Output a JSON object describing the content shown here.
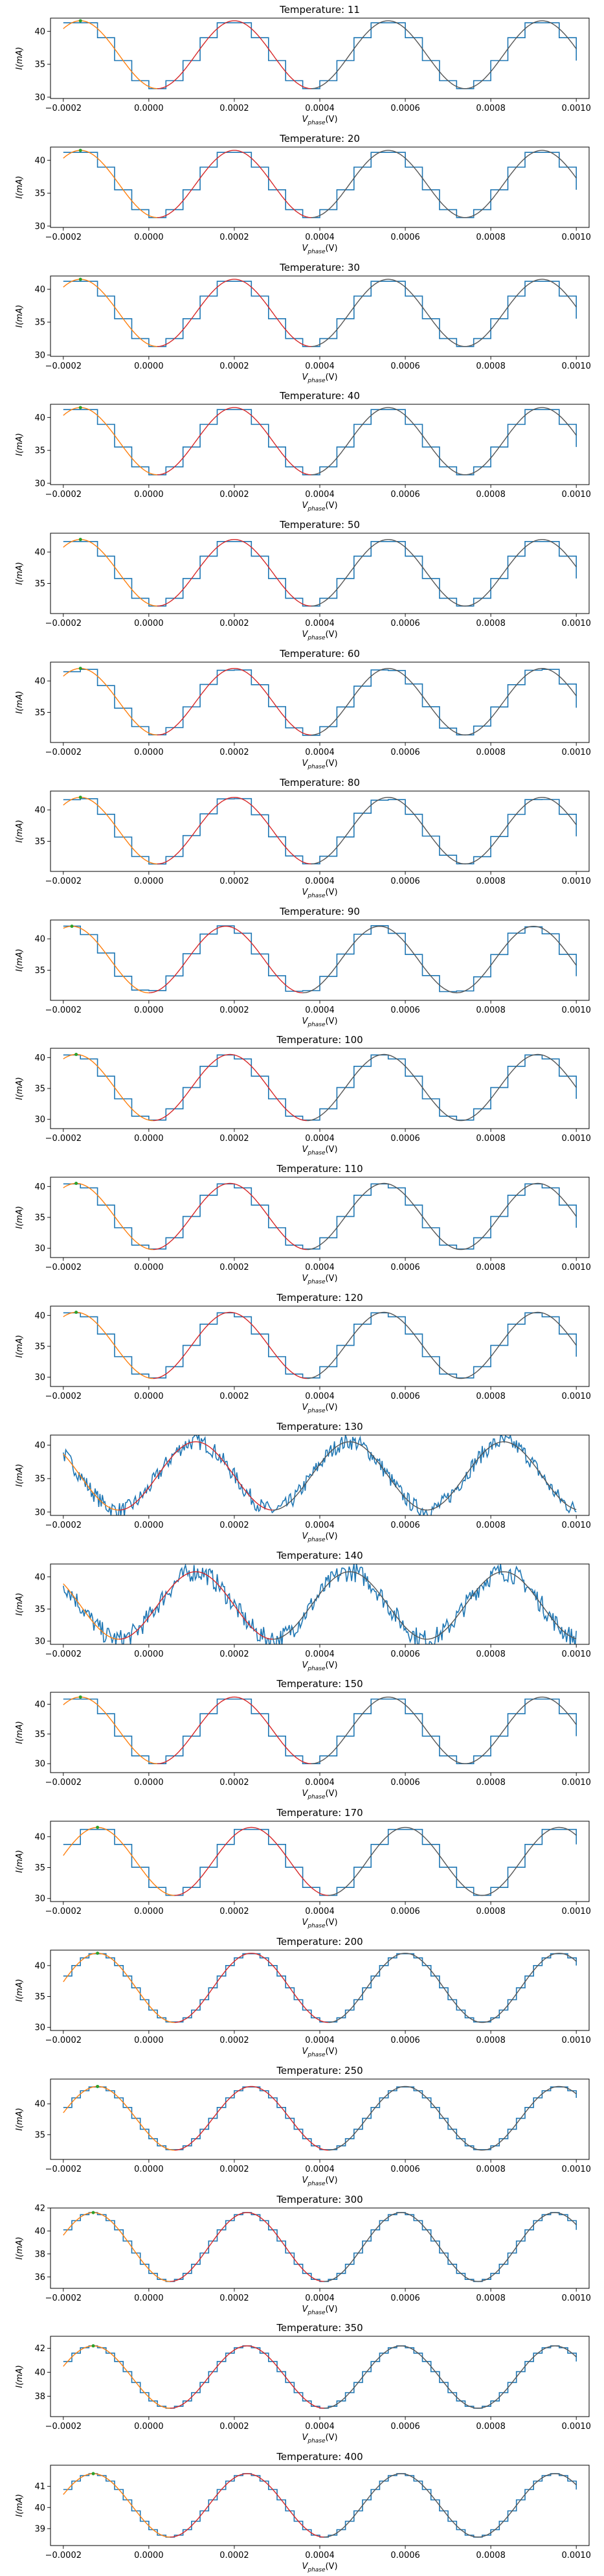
{
  "colors": {
    "measured": "#1f77b4",
    "fit_left": "#ff7f0e",
    "fit_middle": "#d62728",
    "fit_right": "#555555",
    "marker": "#2ca02c"
  },
  "axis": {
    "x_label_main": "V",
    "x_label_sub": "phase",
    "x_label_unit": "(V)",
    "y_label": "I(mA)",
    "x_ticks": [
      "−0.0002",
      "0.0000",
      "0.0002",
      "0.0004",
      "0.0006",
      "0.0008",
      "0.0010"
    ],
    "x_tick_values": [
      -0.0002,
      0.0,
      0.0002,
      0.0004,
      0.0006,
      0.0008,
      0.001
    ],
    "xlim": [
      -0.00023,
      0.00103
    ]
  },
  "chart_data": [
    {
      "type": "line",
      "title": "Temperature: 11",
      "ylim": [
        29.8,
        42
      ],
      "yticks": [
        30,
        35,
        40
      ],
      "offset": 31.3,
      "amplitude": 10.3,
      "phase_peak": 0.0002,
      "period": 0.00036,
      "step": 4e-05,
      "noise": 0
    },
    {
      "type": "line",
      "title": "Temperature: 20",
      "ylim": [
        29.8,
        42
      ],
      "yticks": [
        30,
        35,
        40
      ],
      "offset": 31.3,
      "amplitude": 10.2,
      "phase_peak": 0.0002,
      "period": 0.00036,
      "step": 4e-05,
      "noise": 0
    },
    {
      "type": "line",
      "title": "Temperature: 30",
      "ylim": [
        29.8,
        42
      ],
      "yticks": [
        30,
        35,
        40
      ],
      "offset": 31.3,
      "amplitude": 10.2,
      "phase_peak": 0.0002,
      "period": 0.00036,
      "step": 4e-05,
      "noise": 0
    },
    {
      "type": "line",
      "title": "Temperature: 40",
      "ylim": [
        29.8,
        42
      ],
      "yticks": [
        30,
        35,
        40
      ],
      "offset": 31.3,
      "amplitude": 10.2,
      "phase_peak": 0.0002,
      "period": 0.00036,
      "step": 4e-05,
      "noise": 0
    },
    {
      "type": "line",
      "title": "Temperature: 50",
      "ylim": [
        30.2,
        43
      ],
      "yticks": [
        35,
        40
      ],
      "offset": 31.4,
      "amplitude": 10.6,
      "phase_peak": 0.0002,
      "period": 0.00036,
      "step": 4e-05,
      "noise": 0
    },
    {
      "type": "line",
      "title": "Temperature: 60",
      "ylim": [
        30.2,
        43
      ],
      "yticks": [
        35,
        40
      ],
      "offset": 31.4,
      "amplitude": 10.6,
      "phase_peak": 0.0002,
      "period": 0.00036,
      "step": 4e-05,
      "noise": 0.4
    },
    {
      "type": "line",
      "title": "Temperature: 80",
      "ylim": [
        30.2,
        43
      ],
      "yticks": [
        35,
        40
      ],
      "offset": 31.4,
      "amplitude": 10.6,
      "phase_peak": 0.0002,
      "period": 0.00036,
      "step": 4e-05,
      "noise": 0.3
    },
    {
      "type": "line",
      "title": "Temperature: 90",
      "ylim": [
        30.2,
        43
      ],
      "yticks": [
        35,
        40
      ],
      "offset": 31.4,
      "amplitude": 10.6,
      "phase_peak": 0.00018,
      "period": 0.00036,
      "step": 4e-05,
      "noise": 0.3
    },
    {
      "type": "line",
      "title": "Temperature: 100",
      "ylim": [
        28.5,
        41.5
      ],
      "yticks": [
        30,
        35,
        40
      ],
      "offset": 29.8,
      "amplitude": 10.7,
      "phase_peak": 0.00019,
      "period": 0.00036,
      "step": 4e-05,
      "noise": 0
    },
    {
      "type": "line",
      "title": "Temperature: 110",
      "ylim": [
        28.5,
        41.5
      ],
      "yticks": [
        30,
        35,
        40
      ],
      "offset": 29.8,
      "amplitude": 10.7,
      "phase_peak": 0.00019,
      "period": 0.00036,
      "step": 4e-05,
      "noise": 0
    },
    {
      "type": "line",
      "title": "Temperature: 120",
      "ylim": [
        28.5,
        41.5
      ],
      "yticks": [
        30,
        35,
        40
      ],
      "offset": 29.8,
      "amplitude": 10.7,
      "phase_peak": 0.00019,
      "period": 0.00036,
      "step": 4e-05,
      "noise": 0
    },
    {
      "type": "line",
      "title": "Temperature: 130",
      "ylim": [
        29.5,
        41.5
      ],
      "yticks": [
        30,
        35,
        40
      ],
      "offset": 30.3,
      "amplitude": 10.2,
      "phase_peak": 0.00011,
      "period": 0.00036,
      "step": 0,
      "noise": 1.1
    },
    {
      "type": "line",
      "title": "Temperature: 140",
      "ylim": [
        29.5,
        42
      ],
      "yticks": [
        30,
        35,
        40
      ],
      "offset": 30.3,
      "amplitude": 10.5,
      "phase_peak": 0.00011,
      "period": 0.00036,
      "step": 0,
      "noise": 1.4
    },
    {
      "type": "line",
      "title": "Temperature: 150",
      "ylim": [
        28.5,
        42
      ],
      "yticks": [
        30,
        35,
        40
      ],
      "offset": 30.0,
      "amplitude": 11.2,
      "phase_peak": 0.0002,
      "period": 0.00036,
      "step": 4e-05,
      "noise": 0
    },
    {
      "type": "line",
      "title": "Temperature: 170",
      "ylim": [
        29.5,
        42.5
      ],
      "yticks": [
        30,
        35,
        40
      ],
      "offset": 30.5,
      "amplitude": 11.0,
      "phase_peak": 0.00024,
      "period": 0.00036,
      "step": 4e-05,
      "noise": 0
    },
    {
      "type": "line",
      "title": "Temperature: 200",
      "ylim": [
        29.5,
        42.5
      ],
      "yticks": [
        30,
        35,
        40
      ],
      "offset": 30.8,
      "amplitude": 11.2,
      "phase_peak": 0.00024,
      "period": 0.00036,
      "step": 2e-05,
      "noise": 0
    },
    {
      "type": "line",
      "title": "Temperature: 250",
      "ylim": [
        31,
        44
      ],
      "yticks": [
        35,
        40
      ],
      "offset": 32.5,
      "amplitude": 10.3,
      "phase_peak": 0.00024,
      "period": 0.00036,
      "step": 2e-05,
      "noise": 0
    },
    {
      "type": "line",
      "title": "Temperature: 300",
      "ylim": [
        35,
        42
      ],
      "yticks": [
        36,
        38,
        40,
        42
      ],
      "offset": 35.6,
      "amplitude": 6.0,
      "phase_peak": 0.00023,
      "period": 0.00036,
      "step": 2e-05,
      "noise": 0
    },
    {
      "type": "line",
      "title": "Temperature: 350",
      "ylim": [
        36.3,
        43
      ],
      "yticks": [
        38,
        40,
        42
      ],
      "offset": 37.0,
      "amplitude": 5.2,
      "phase_peak": 0.00023,
      "period": 0.00036,
      "step": 2e-05,
      "noise": 0
    },
    {
      "type": "line",
      "title": "Temperature: 400",
      "ylim": [
        38.2,
        42
      ],
      "yticks": [
        39,
        40,
        41
      ],
      "offset": 38.6,
      "amplitude": 3.0,
      "phase_peak": 0.00023,
      "period": 0.00036,
      "step": 2e-05,
      "noise": 0
    }
  ]
}
